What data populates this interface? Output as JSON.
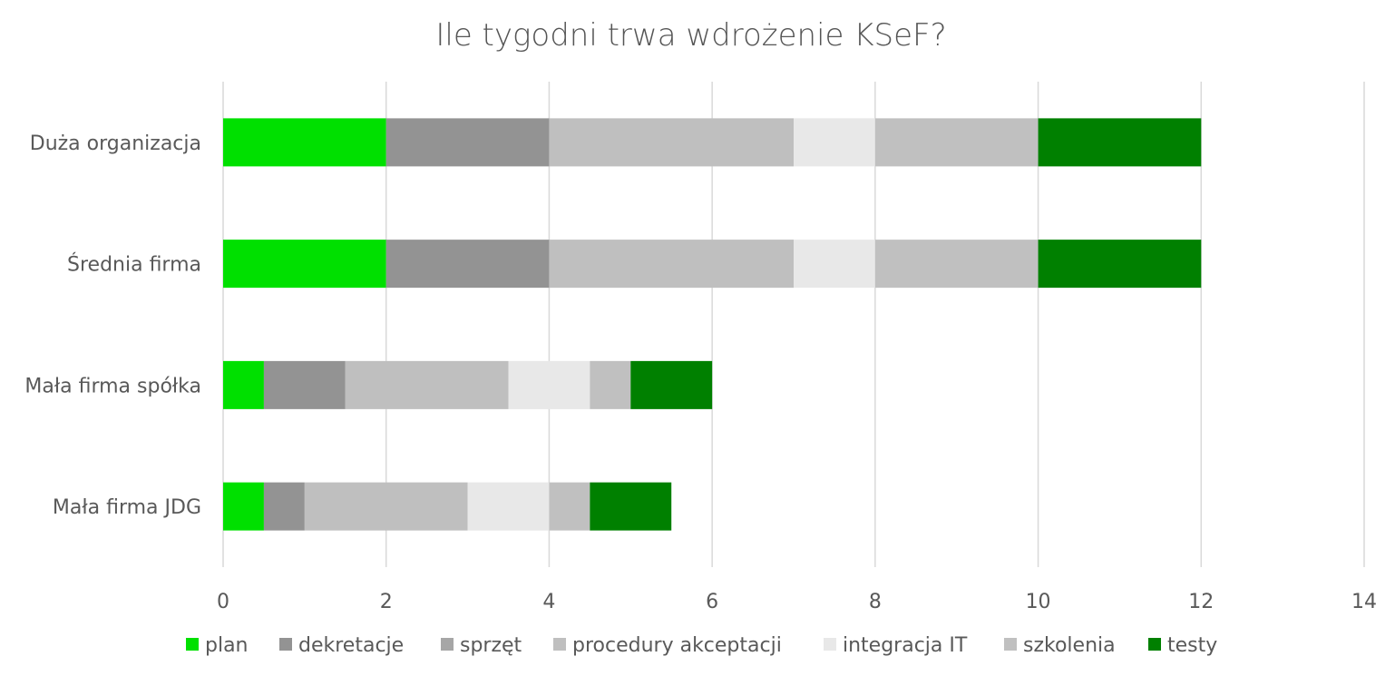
{
  "chart_data": {
    "type": "bar",
    "orientation": "horizontal",
    "stacked": true,
    "title": "Ile tygodni trwa wdrożenie KSeF?",
    "xlabel": "",
    "ylabel": "",
    "xlim": [
      0,
      14
    ],
    "x_ticks": [
      0,
      2,
      4,
      6,
      8,
      10,
      12,
      14
    ],
    "grid": "vertical",
    "legend_position": "bottom",
    "categories": [
      "Duża organizacja",
      "Średnia firma",
      "Mała firma spółka",
      "Mała firma JDG"
    ],
    "series": [
      {
        "name": "plan",
        "color": "#00e000",
        "values": [
          2,
          2,
          0.5,
          0.5
        ]
      },
      {
        "name": "dekretacje",
        "color": "#939393",
        "values": [
          2,
          2,
          1,
          0.5
        ]
      },
      {
        "name": "sprzęt",
        "color": "#a6a6a6",
        "values": [
          0,
          0,
          0,
          0
        ]
      },
      {
        "name": "procedury akceptacji",
        "color": "#bfbfbf",
        "values": [
          3,
          3,
          2,
          2
        ]
      },
      {
        "name": "integracja IT",
        "color": "#e8e8e8",
        "values": [
          1,
          1,
          1,
          1
        ]
      },
      {
        "name": "szkolenia",
        "color": "#c0c0c0",
        "values": [
          2,
          2,
          0.5,
          0.5
        ]
      },
      {
        "name": "testy",
        "color": "#008000",
        "values": [
          2,
          2,
          1,
          1
        ]
      }
    ]
  }
}
